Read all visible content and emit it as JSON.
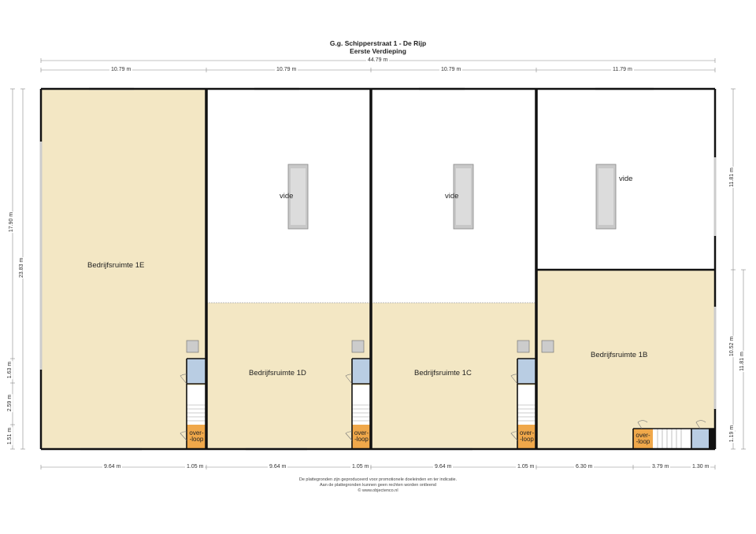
{
  "header": {
    "title": "G.g. Schipperstraat 1 - De Rijp",
    "subtitle": "Eerste Verdieping"
  },
  "dimensions": {
    "total_width": "44.79 m",
    "top_segments": [
      "10.79 m",
      "10.79 m",
      "10.79 m",
      "11.79 m"
    ],
    "bottom_segments": [
      "9.64 m",
      "1.05 m",
      "9.64 m",
      "1.05 m",
      "9.64 m",
      "1.05 m",
      "6.30 m",
      "3.79 m",
      "1.30 m"
    ],
    "left_total": "23.83 m",
    "left_segments": [
      "17.90 m",
      "1.63 m",
      "2.59 m",
      "1.51 m"
    ],
    "right_segments": [
      "11.81 m",
      "10.52 m",
      "1.19 m"
    ],
    "right_total": "11.81 m"
  },
  "rooms": {
    "r1e": "Bedrijfsruimte 1E",
    "r1d": "Bedrijfsruimte 1D",
    "r1c": "Bedrijfsruimte 1C",
    "r1b": "Bedrijfsruimte 1B",
    "vide": "vide",
    "overloop_top": "over-",
    "overloop_bottom": "-loop"
  },
  "footer": {
    "line1": "De plattegronden zijn geproduceerd voor promotionele doeleinden en ter indicatie.",
    "line2": "Aan de plattegronden kunnen geen rechten worden ontleend",
    "line3": "© www.objectenco.nl"
  },
  "colors": {
    "floor": "#f3e7c4",
    "wet": "#b9cde3",
    "stair": "#f0a84a",
    "wall": "#111111",
    "vide_bar": "#c8c8c8"
  }
}
